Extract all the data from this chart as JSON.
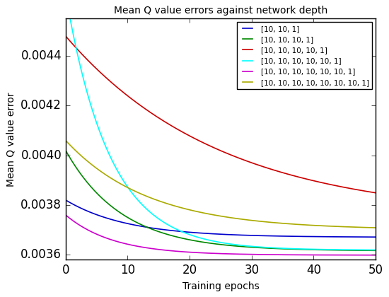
{
  "title": "Mean Q value errors against network depth",
  "xlabel": "Training epochs",
  "ylabel": "Mean Q value error",
  "xlim": [
    0,
    50
  ],
  "ylim": [
    0.00358,
    0.00455
  ],
  "yticks": [
    0.0036,
    0.0038,
    0.004,
    0.0042,
    0.0044
  ],
  "xticks": [
    0,
    10,
    20,
    30,
    40,
    50
  ],
  "n_points": 500,
  "lines": [
    {
      "label": "[10, 10, 1]",
      "color": "#0000cc",
      "start": 0.00382,
      "end": 0.00367,
      "decay": 0.1
    },
    {
      "label": "[10, 10, 10, 1]",
      "color": "#008800",
      "start": 0.00402,
      "end": 0.003615,
      "decay": 0.11
    },
    {
      "label": "[10, 10, 10, 10, 1]",
      "color": "#cc0000",
      "start": 0.00448,
      "end": 0.00375,
      "decay": 0.04
    },
    {
      "label": "[10, 10, 10, 10, 10, 1]",
      "color": "cyan",
      "start": 0.00465,
      "end": 0.003618,
      "decay": 0.14
    },
    {
      "label": "[10, 10, 10, 10, 10, 10, 1]",
      "color": "#cc00cc",
      "start": 0.00376,
      "end": 0.003598,
      "decay": 0.13
    },
    {
      "label": "[10, 10, 10, 10, 10, 10, 10, 1]",
      "color": "#aaaa00",
      "start": 0.00406,
      "end": 0.0037,
      "decay": 0.075
    }
  ]
}
